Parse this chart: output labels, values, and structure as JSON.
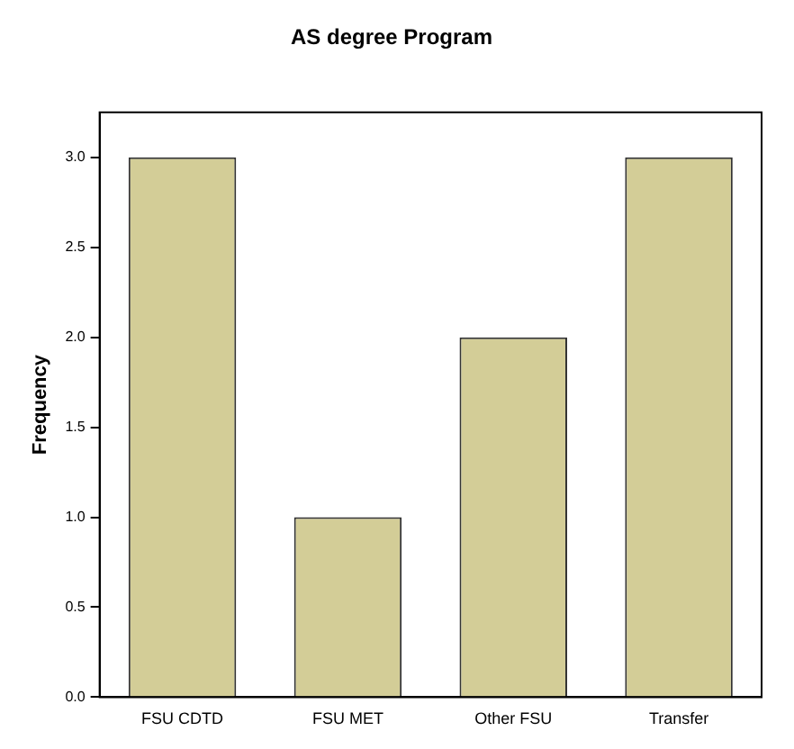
{
  "chart_data": {
    "type": "bar",
    "title": "AS degree Program",
    "ylabel": "Frequency",
    "categories": [
      "FSU CDTD",
      "FSU MET",
      "Other FSU",
      "Transfer"
    ],
    "values": [
      3,
      1,
      2,
      3
    ],
    "color": "#d3cd97",
    "ylim": [
      0,
      3.25
    ],
    "yticks": [
      {
        "value": 0,
        "label": "0.0"
      },
      {
        "value": 0.5,
        "label": "0.5"
      },
      {
        "value": 1,
        "label": "1.0"
      },
      {
        "value": 1.5,
        "label": "1.5"
      },
      {
        "value": 2,
        "label": "2.0"
      },
      {
        "value": 2.5,
        "label": "2.5"
      },
      {
        "value": 3,
        "label": "3.0"
      }
    ],
    "grid": false,
    "legend": false
  }
}
